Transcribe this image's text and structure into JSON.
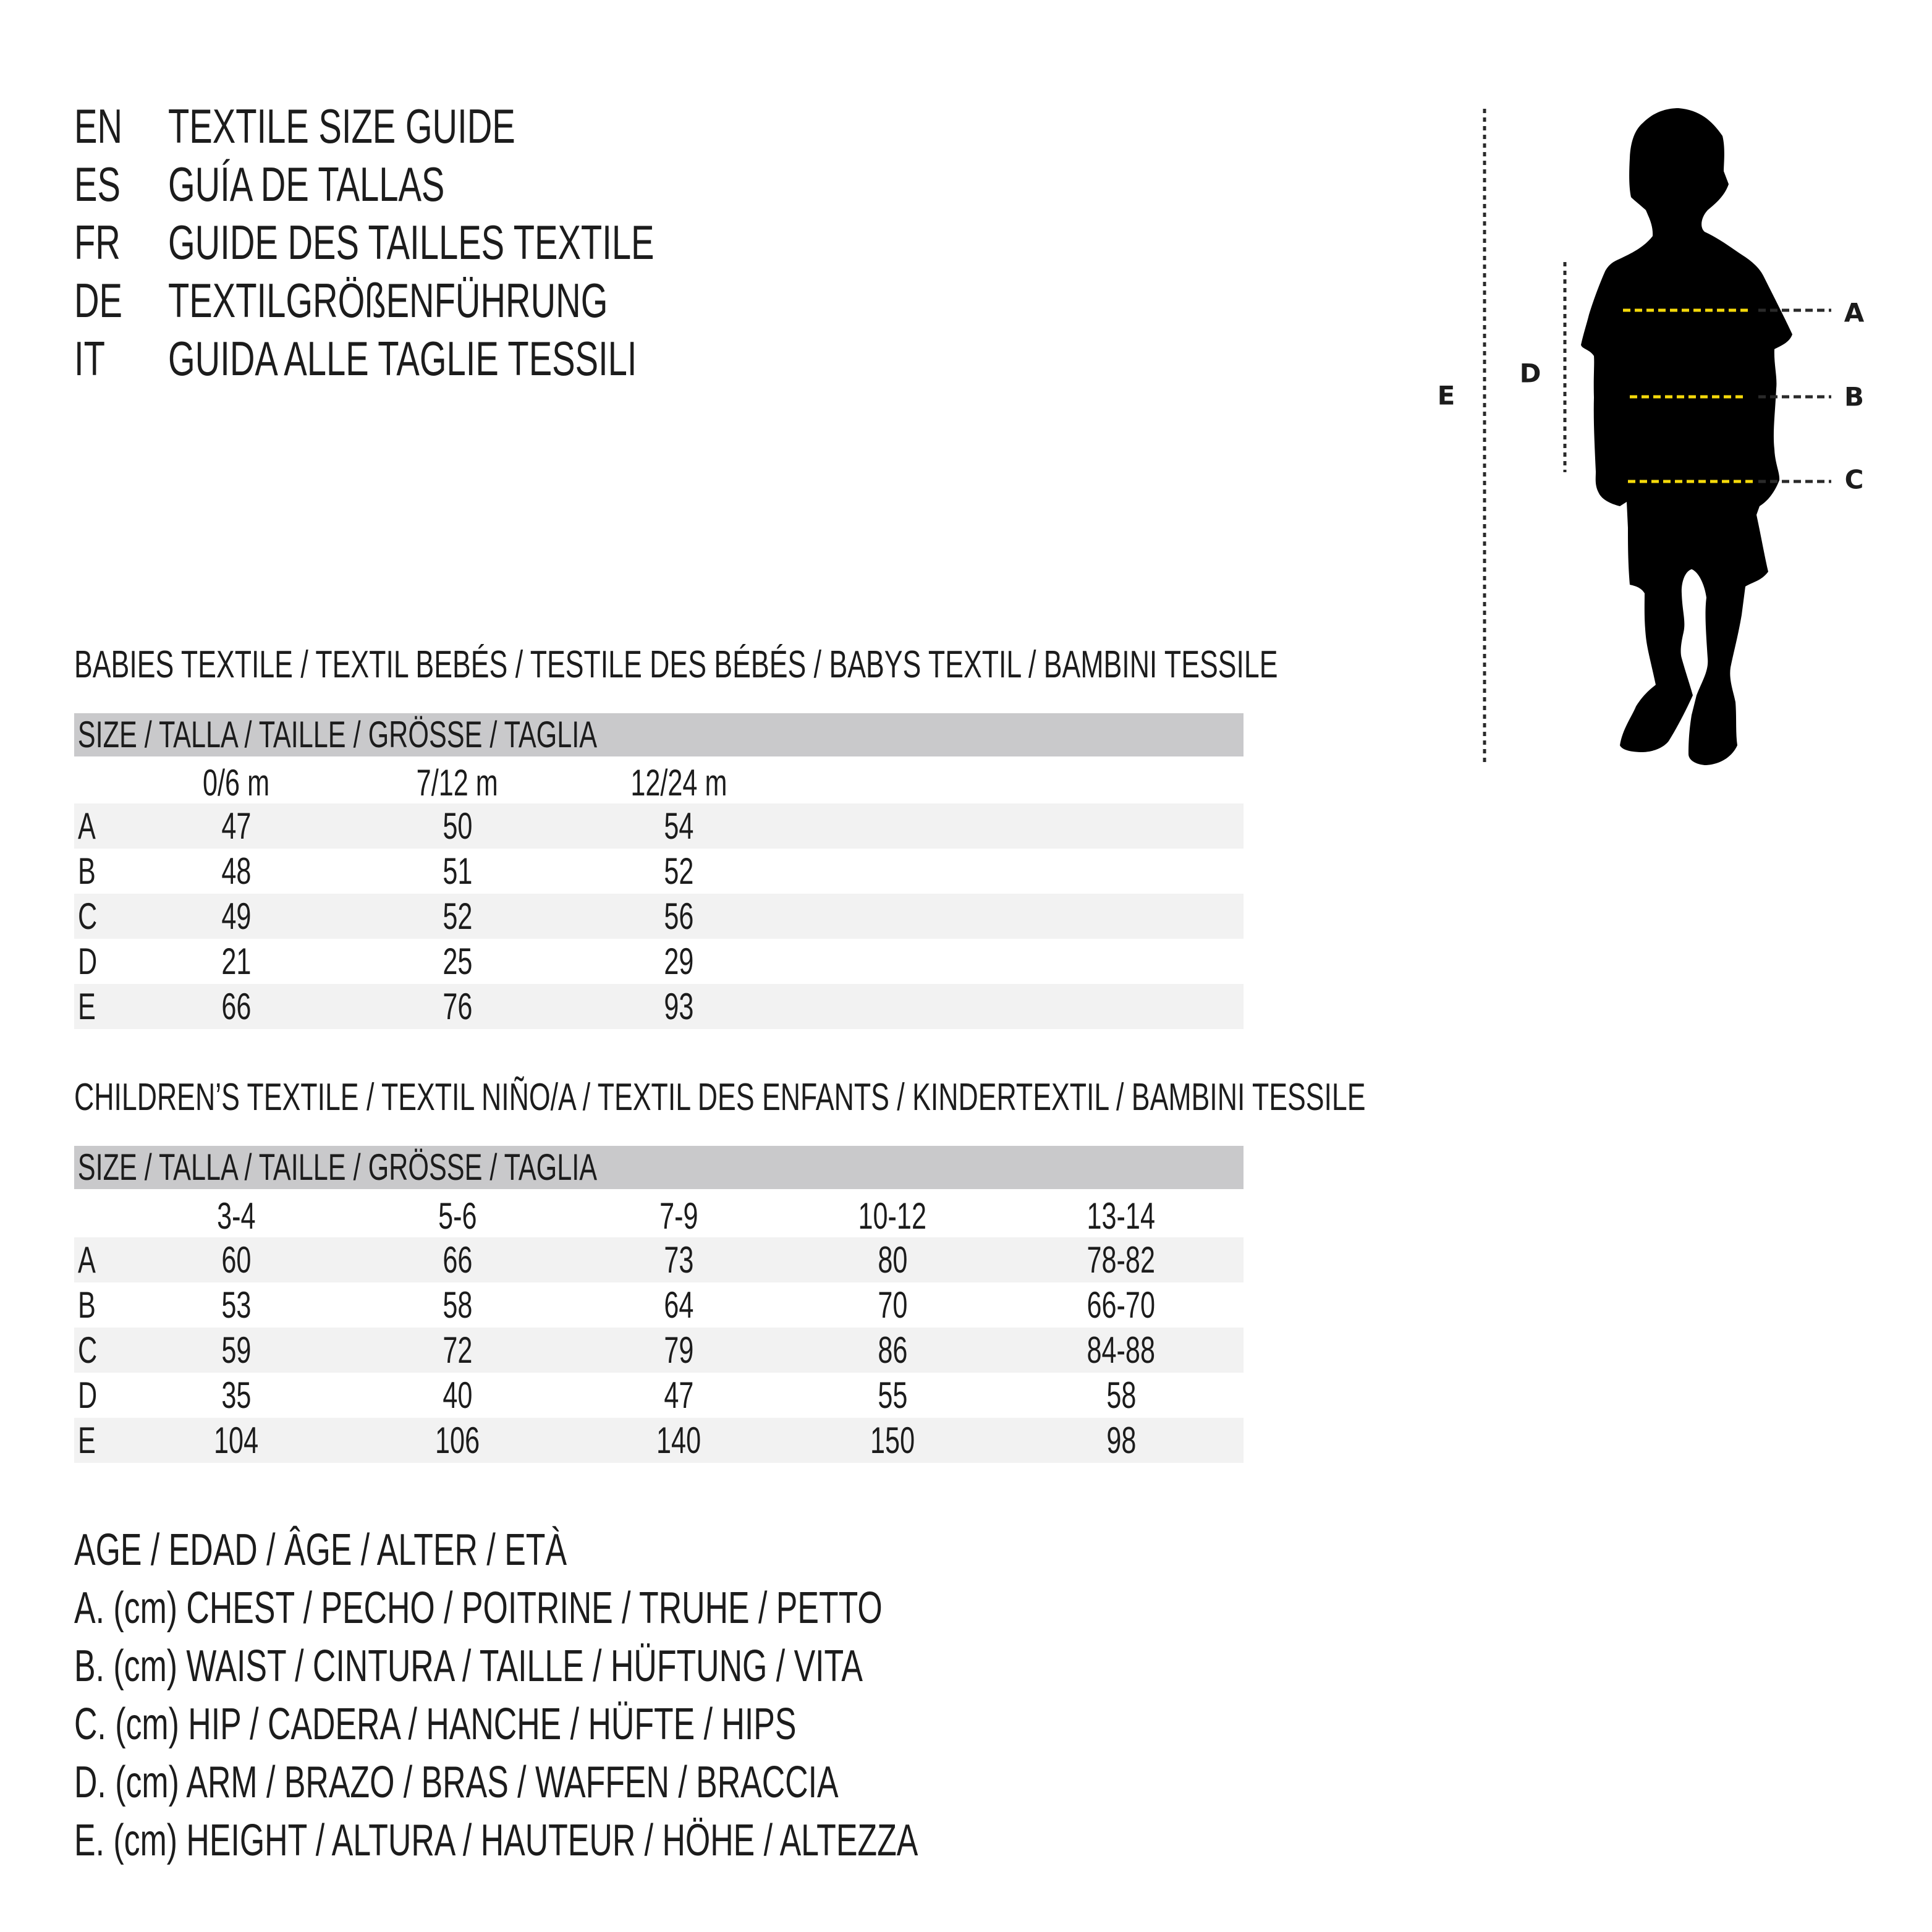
{
  "header": {
    "lines": [
      {
        "code": "EN",
        "title": "TEXTILE SIZE GUIDE"
      },
      {
        "code": "ES",
        "title": "GUÍA DE TALLAS"
      },
      {
        "code": "FR",
        "title": "GUIDE DES TAILLES TEXTILE"
      },
      {
        "code": "DE",
        "title": "TEXTILGRÖßENFÜHRUNG"
      },
      {
        "code": "IT",
        "title": "GUIDA ALLE TAGLIE TESSILI"
      }
    ]
  },
  "babies": {
    "heading": "BABIES TEXTILE / TEXTIL BEBÉS / TESTILE DES BÉBÉS / BABYS TEXTIL / BAMBINI TESSILE",
    "size_bar": "SIZE / TALLA / TAILLE / GRÖSSE / TAGLIA",
    "columns": [
      "0/6 m",
      "7/12 m",
      "12/24 m"
    ],
    "rows": [
      {
        "label": "A",
        "values": [
          "47",
          "50",
          "54"
        ]
      },
      {
        "label": "B",
        "values": [
          "48",
          "51",
          "52"
        ]
      },
      {
        "label": "C",
        "values": [
          "49",
          "52",
          "56"
        ]
      },
      {
        "label": "D",
        "values": [
          "21",
          "25",
          "29"
        ]
      },
      {
        "label": "E",
        "values": [
          "66",
          "76",
          "93"
        ]
      }
    ]
  },
  "children": {
    "heading": "CHILDREN’S TEXTILE / TEXTIL NIÑO/A / TEXTIL DES ENFANTS / KINDERTEXTIL / BAMBINI TESSILE",
    "size_bar": "SIZE / TALLA / TAILLE / GRÖSSE / TAGLIA",
    "columns": [
      "3-4",
      "5-6",
      "7-9",
      "10-12",
      "13-14"
    ],
    "rows": [
      {
        "label": "A",
        "values": [
          "60",
          "66",
          "73",
          "80",
          "78-82"
        ]
      },
      {
        "label": "B",
        "values": [
          "53",
          "58",
          "64",
          "70",
          "66-70"
        ]
      },
      {
        "label": "C",
        "values": [
          "59",
          "72",
          "79",
          "86",
          "84-88"
        ]
      },
      {
        "label": "D",
        "values": [
          "35",
          "40",
          "47",
          "55",
          "58"
        ]
      },
      {
        "label": "E",
        "values": [
          "104",
          "106",
          "140",
          "150",
          "98"
        ]
      }
    ]
  },
  "legend": [
    "AGE / EDAD / ÂGE / ALTER / ETÀ",
    "A. (cm) CHEST / PECHO / POITRINE / TRUHE / PETTO",
    "B. (cm) WAIST / CINTURA / TAILLE / HÜFTUNG / VITA",
    "C. (cm) HIP / CADERA / HANCHE / HÜFTE / HIPS",
    "D. (cm) ARM / BRAZO / BRAS / WAFFEN / BRACCIA",
    "E. (cm) HEIGHT / ALTURA / HAUTEUR / HÖHE / ALTEZZA"
  ],
  "figure": {
    "labels": {
      "a": "A",
      "b": "B",
      "c": "C",
      "d": "D",
      "e": "E"
    },
    "measure_line_color": "#f5d90a",
    "guide_color": "#2a2a2a",
    "silhouette_color": "#000000"
  }
}
